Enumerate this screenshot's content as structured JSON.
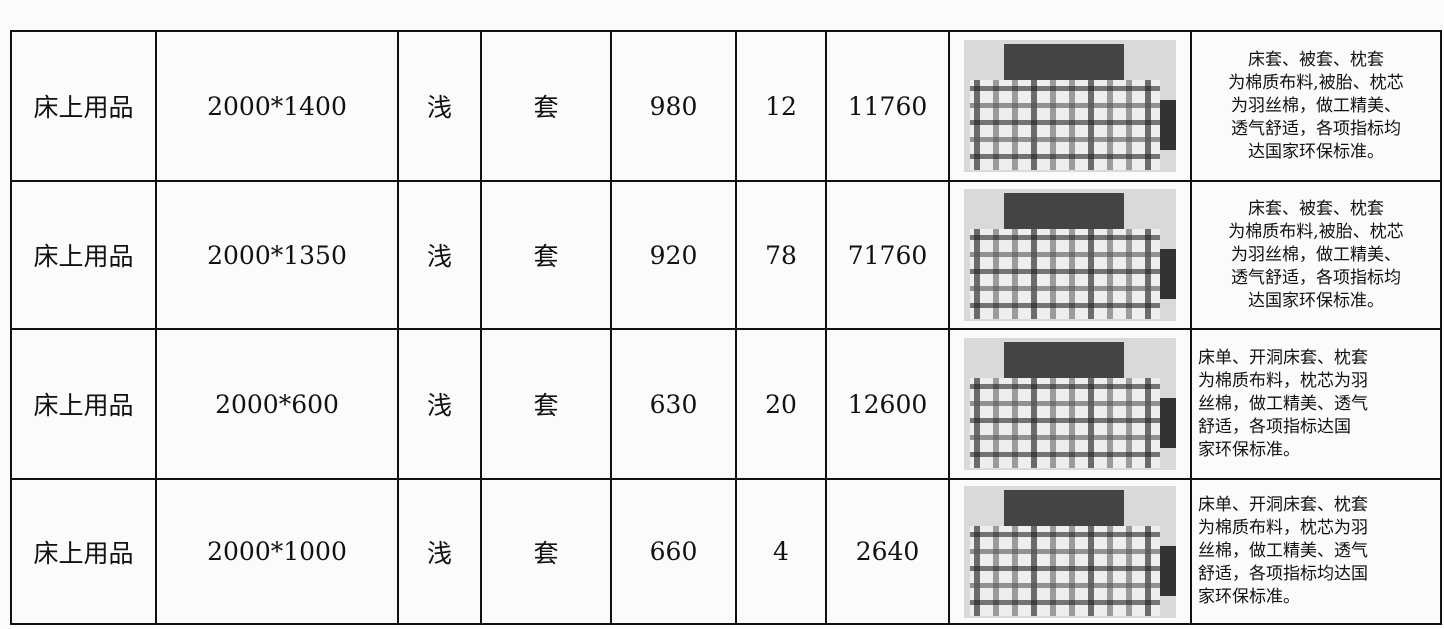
{
  "table": {
    "rows": [
      [
        "床上用品",
        "2000*1400",
        "浅",
        "套",
        980,
        12,
        11760,
        [
          "床套、被套、枕套",
          "为棉质布料,被胎、枕芯",
          "为羽丝棉，做工精美、",
          "透气舒适，各项指标均",
          "达国家环保标准。"
        ]
      ],
      [
        "床上用品",
        "2000*1350",
        "浅",
        "套",
        920,
        78,
        71760,
        [
          "床套、被套、枕套",
          "为棉质布料,被胎、枕芯",
          "为羽丝棉，做工精美、",
          "透气舒适，各项指标均",
          "达国家环保标准。"
        ]
      ],
      [
        "床上用品",
        "2000*600",
        "浅",
        "套",
        630,
        20,
        12600,
        [
          "床单、开洞床套、枕套",
          "为棉质布料，枕芯为羽",
          "丝棉，做工精美、透气",
          "舒适，各项指标达国",
          "家环保标准。"
        ]
      ],
      [
        "床上用品",
        "2000*1000",
        "浅",
        "套",
        660,
        4,
        2640,
        [
          "床单、开洞床套、枕套",
          "为棉质布料，枕芯为羽",
          "丝棉，做工精美、透气",
          "舒适，各项指标均达国",
          "家环保标准。"
        ]
      ]
    ]
  }
}
